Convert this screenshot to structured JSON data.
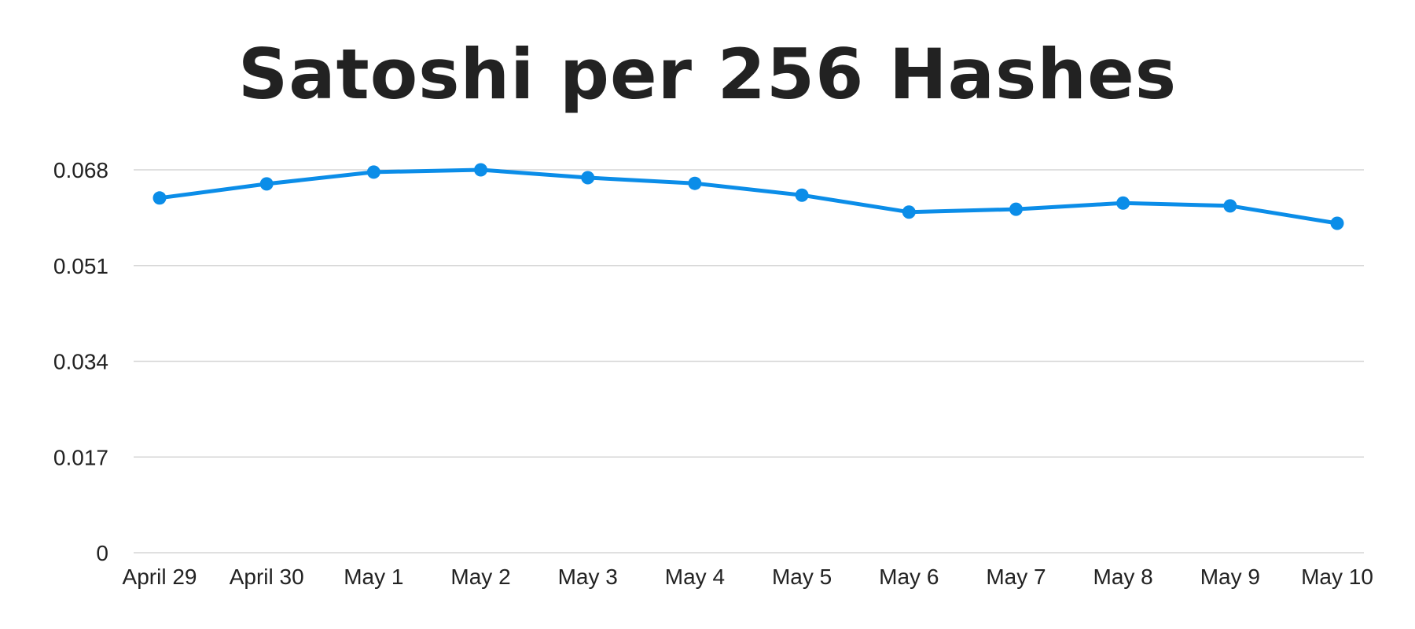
{
  "chart_data": {
    "type": "line",
    "title": "Satoshi per 256 Hashes",
    "xlabel": "",
    "ylabel": "",
    "categories": [
      "April 29",
      "April 30",
      "May 1",
      "May 2",
      "May 3",
      "May 4",
      "May 5",
      "May 6",
      "May 7",
      "May 8",
      "May 9",
      "May 10"
    ],
    "series": [
      {
        "values": [
          0.063,
          0.0655,
          0.0676,
          0.068,
          0.0666,
          0.0656,
          0.0635,
          0.0605,
          0.061,
          0.0621,
          0.0616,
          0.0585
        ],
        "color": "#0b8de8"
      }
    ],
    "yticks": [
      "0",
      "0.017",
      "0.034",
      "0.051",
      "0.068"
    ],
    "ytick_values": [
      0,
      0.017,
      0.034,
      0.051,
      0.068
    ],
    "ylim": [
      0,
      0.068
    ],
    "grid": true,
    "legend": "none"
  }
}
